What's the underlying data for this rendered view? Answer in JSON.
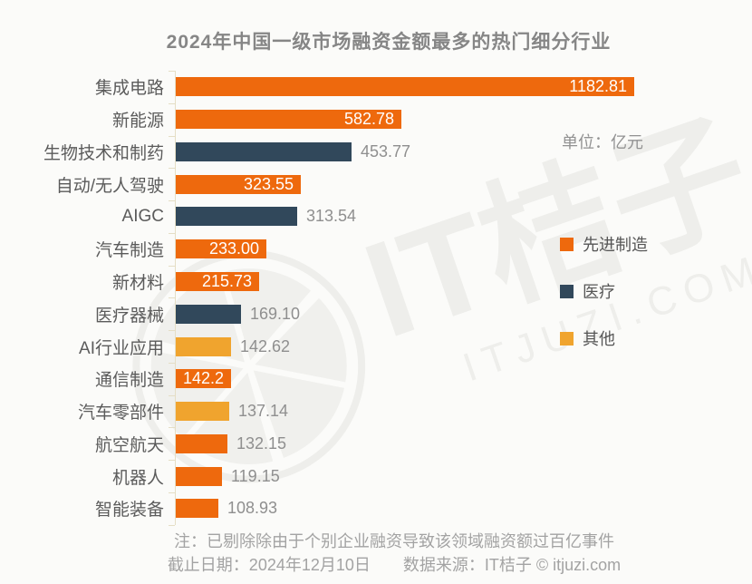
{
  "title": "2024年中国一级市场融资金额最多的热门细分行业",
  "unit_label": "单位：亿元",
  "watermark": {
    "brand": "IT桔子",
    "domain": "ITJUZI.COM"
  },
  "colors": {
    "advanced_manufacturing": "#EE690D",
    "medical": "#31485B",
    "other": "#F0A42E",
    "axis": "#E5DEC5",
    "title_text": "#868686",
    "value_text": "#8F8F8F",
    "background": "#FBFBF9"
  },
  "legend": {
    "items": [
      {
        "label": "先进制造",
        "color": "#EE690D"
      },
      {
        "label": "医疗",
        "color": "#31485B"
      },
      {
        "label": "其他",
        "color": "#F0A42E"
      }
    ]
  },
  "footer": {
    "note": "注：已剔除除由于个别企业融资导致该领域融资额过百亿事件",
    "date_source": "截止日期：2024年12月10日　　数据来源：IT桔子 © itjuzi.com"
  },
  "chart_data": {
    "type": "bar",
    "orientation": "horizontal",
    "title": "2024年中国一级市场融资金额最多的热门细分行业",
    "unit": "亿元",
    "xlim": [
      0,
      1182.81
    ],
    "max_value": 1182.81,
    "grid": false,
    "legend_position": "right",
    "categories": [
      "集成电路",
      "新能源",
      "生物技术和制药",
      "自动/无人驾驶",
      "AIGC",
      "汽车制造",
      "新材料",
      "医疗器械",
      "AI行业应用",
      "通信制造",
      "汽车零部件",
      "航空航天",
      "机器人",
      "智能装备"
    ],
    "values": [
      1182.81,
      582.78,
      453.77,
      323.55,
      313.54,
      233.0,
      215.73,
      169.1,
      142.62,
      142.2,
      137.14,
      132.15,
      119.15,
      108.93
    ],
    "bars": [
      {
        "label": "集成电路",
        "value": 1182.81,
        "display": "1182.81",
        "group": "先进制造",
        "color": "#EE690D",
        "value_inside": true
      },
      {
        "label": "新能源",
        "value": 582.78,
        "display": "582.78",
        "group": "先进制造",
        "color": "#EE690D",
        "value_inside": true
      },
      {
        "label": "生物技术和制药",
        "value": 453.77,
        "display": "453.77",
        "group": "医疗",
        "color": "#31485B",
        "value_inside": false
      },
      {
        "label": "自动/无人驾驶",
        "value": 323.55,
        "display": "323.55",
        "group": "先进制造",
        "color": "#EE690D",
        "value_inside": true
      },
      {
        "label": "AIGC",
        "value": 313.54,
        "display": "313.54",
        "group": "医疗",
        "color": "#31485B",
        "value_inside": false
      },
      {
        "label": "汽车制造",
        "value": 233.0,
        "display": "233.00",
        "group": "先进制造",
        "color": "#EE690D",
        "value_inside": true
      },
      {
        "label": "新材料",
        "value": 215.73,
        "display": "215.73",
        "group": "先进制造",
        "color": "#EE690D",
        "value_inside": true
      },
      {
        "label": "医疗器械",
        "value": 169.1,
        "display": "169.10",
        "group": "医疗",
        "color": "#31485B",
        "value_inside": false
      },
      {
        "label": "AI行业应用",
        "value": 142.62,
        "display": "142.62",
        "group": "其他",
        "color": "#F0A42E",
        "value_inside": false
      },
      {
        "label": "通信制造",
        "value": 142.2,
        "display": "142.2",
        "group": "先进制造",
        "color": "#EE690D",
        "value_inside": true
      },
      {
        "label": "汽车零部件",
        "value": 137.14,
        "display": "137.14",
        "group": "其他",
        "color": "#F0A42E",
        "value_inside": false
      },
      {
        "label": "航空航天",
        "value": 132.15,
        "display": "132.15",
        "group": "先进制造",
        "color": "#EE690D",
        "value_inside": false
      },
      {
        "label": "机器人",
        "value": 119.15,
        "display": "119.15",
        "group": "先进制造",
        "color": "#EE690D",
        "value_inside": false
      },
      {
        "label": "智能装备",
        "value": 108.93,
        "display": "108.93",
        "group": "先进制造",
        "color": "#EE690D",
        "value_inside": false
      }
    ]
  }
}
